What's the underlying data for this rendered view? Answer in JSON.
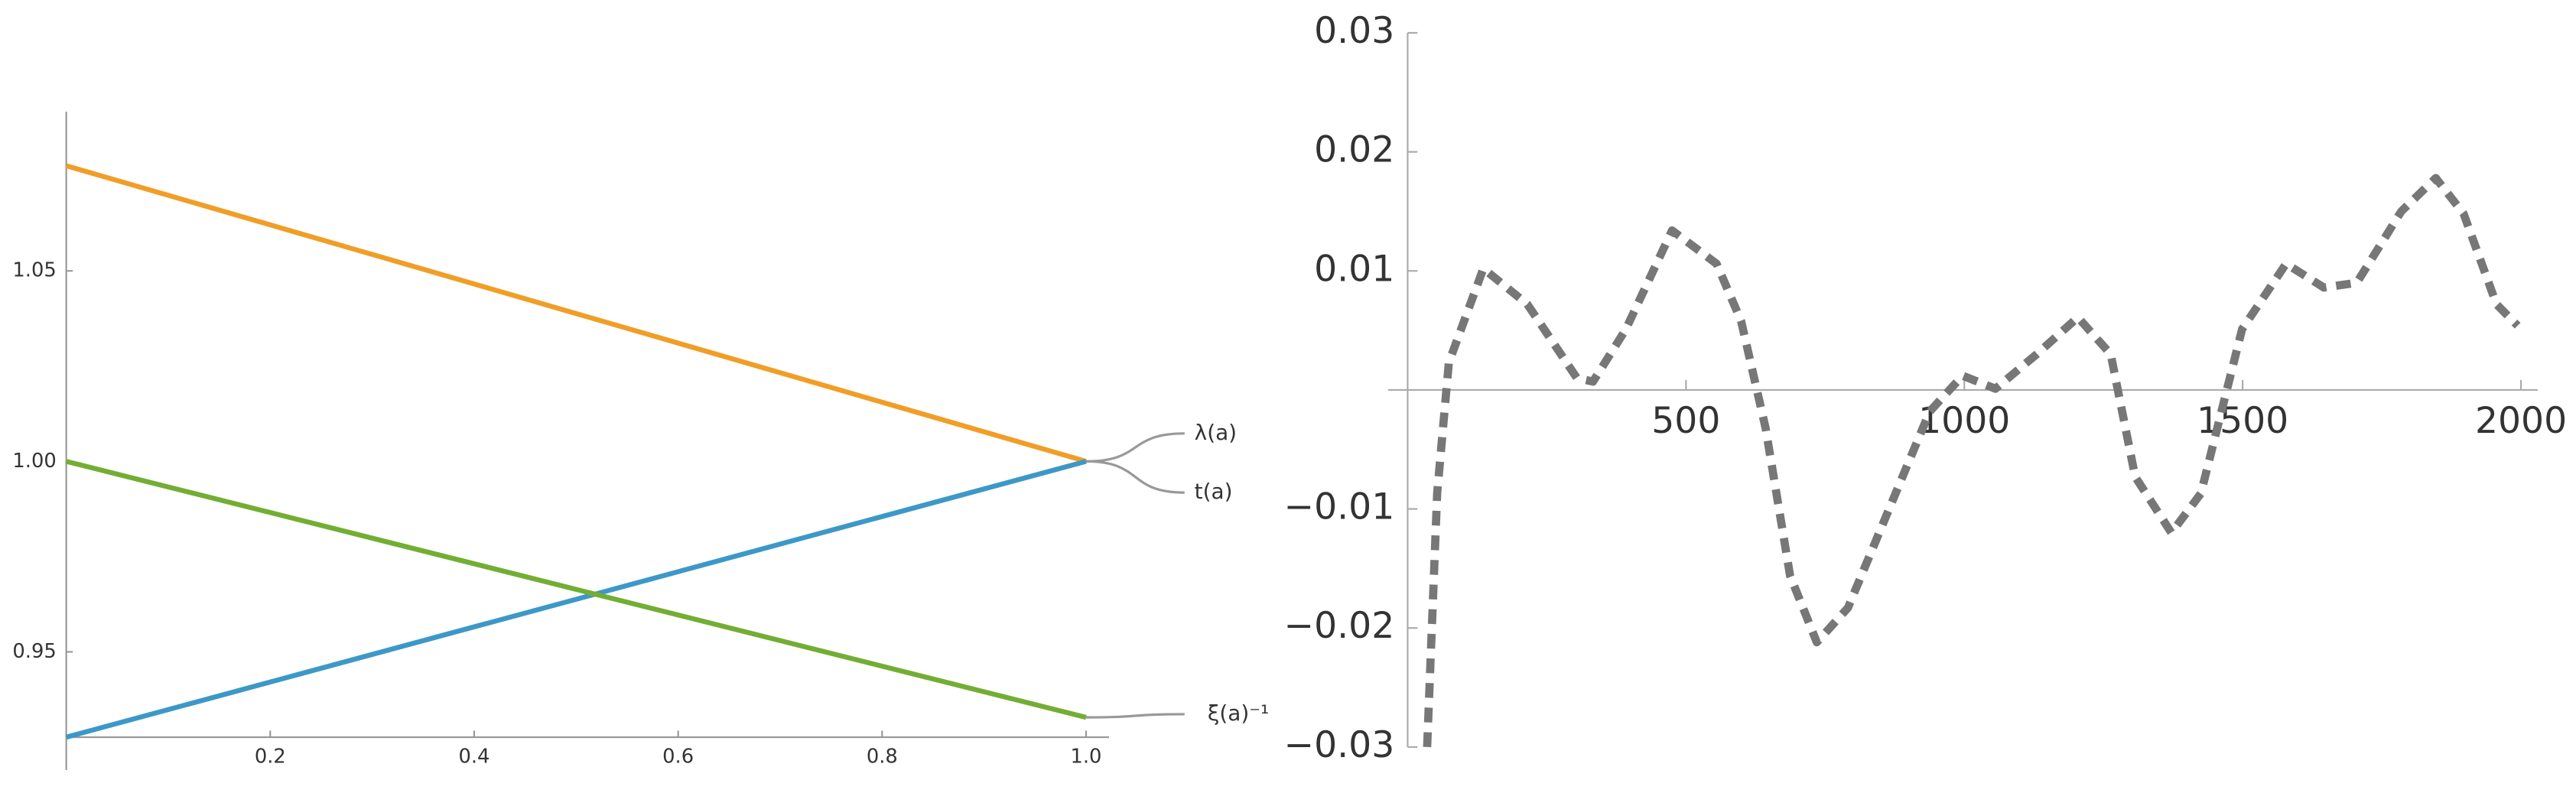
{
  "chart_data": [
    {
      "type": "line",
      "x": [
        0,
        1
      ],
      "series": [
        {
          "name": "λ(a)",
          "color": "#f09e27",
          "values": [
            1.0776,
            1.0
          ]
        },
        {
          "name": "t(a)",
          "color": "#3d98c8",
          "values": [
            0.9276,
            1.0
          ]
        },
        {
          "name": "ξ(a)⁻¹",
          "color": "#72ae33",
          "values": [
            1.0,
            0.9328
          ]
        }
      ],
      "xlim": [
        0,
        1.0225
      ],
      "ylim": [
        0.9276,
        1.0918
      ],
      "xticks": [
        0.2,
        0.4,
        0.6,
        0.8,
        {
          "value": 1.0,
          "label": "1.0"
        }
      ],
      "yticks": [
        0.95,
        {
          "value": 1.0,
          "label": "1.00"
        },
        1.05
      ]
    },
    {
      "type": "line",
      "dashed": true,
      "x": [
        35,
        53,
        74,
        136,
        215,
        304,
        333,
        392,
        475,
        555,
        599,
        643,
        687,
        735,
        791,
        864,
        938,
        997,
        1056,
        1130,
        1204,
        1263,
        1307,
        1372,
        1425,
        1499,
        1578,
        1646,
        1705,
        1785,
        1847,
        1897,
        1956,
        1994
      ],
      "series": [
        {
          "color": "#777777",
          "values": [
            -0.03,
            -0.0087,
            0.0023,
            0.0102,
            0.0072,
            0.001,
            0.0007,
            0.0051,
            0.0134,
            0.0106,
            0.0058,
            -0.0032,
            -0.0156,
            -0.0212,
            -0.0183,
            -0.0101,
            -0.0018,
            0.0012,
            0.0001,
            0.003,
            0.0061,
            0.003,
            -0.0073,
            -0.012,
            -0.0087,
            0.0051,
            0.0106,
            0.0086,
            0.009,
            0.015,
            0.0178,
            0.0148,
            0.0072,
            0.0054
          ]
        }
      ],
      "xlim": [
        -35,
        2030
      ],
      "ylim": [
        -0.03,
        0.03
      ],
      "xticks": [
        500,
        1000,
        1500,
        2000
      ],
      "yticks": [
        {
          "value": -0.03,
          "label": "−0.03"
        },
        {
          "value": -0.02,
          "label": "−0.02"
        },
        {
          "value": -0.01,
          "label": "−0.01"
        },
        0.01,
        0.02,
        0.03
      ]
    }
  ]
}
